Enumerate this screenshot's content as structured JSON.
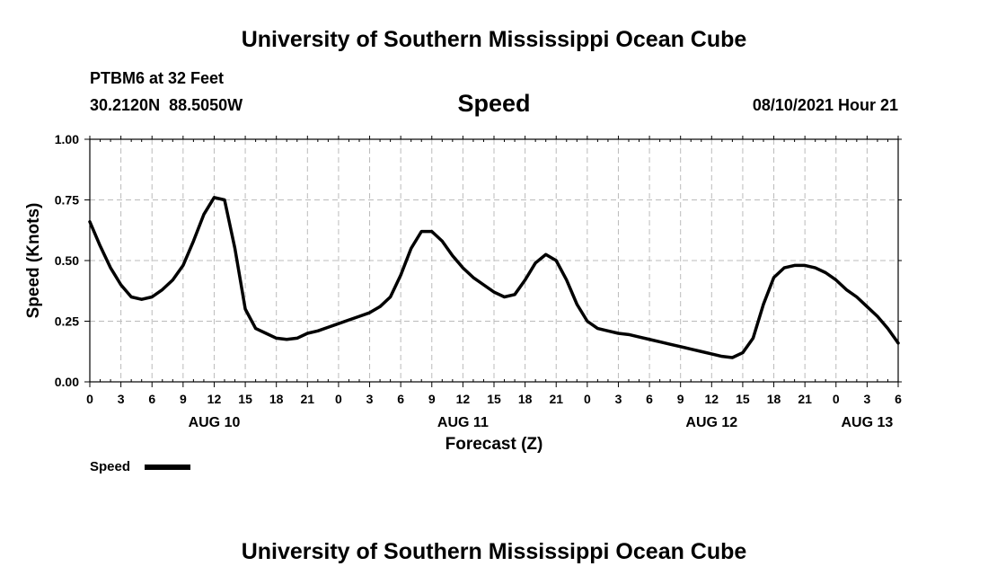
{
  "header": {
    "top_title": "University of Southern Mississippi Ocean Cube",
    "station": "PTBM6 at 32 Feet",
    "coords": "30.2120N  88.5050W",
    "datetime": "08/10/2021 Hour 21"
  },
  "footer": {
    "title": "University of Southern Mississippi Ocean Cube"
  },
  "chart_data": {
    "type": "line",
    "title": "Speed",
    "xlabel": "Forecast (Z)",
    "ylabel": "Speed (Knots)",
    "xlim": [
      0,
      78
    ],
    "ylim": [
      0,
      1.0
    ],
    "grid": true,
    "legend": "bottom-left",
    "y_ticks": [
      "0.00",
      "0.25",
      "0.50",
      "0.75",
      "1.00"
    ],
    "x_ticks": [
      "0",
      "3",
      "6",
      "9",
      "12",
      "15",
      "18",
      "21",
      "0",
      "3",
      "6",
      "9",
      "12",
      "15",
      "18",
      "21",
      "0",
      "3",
      "6",
      "9",
      "12",
      "15",
      "18",
      "21",
      "0",
      "3",
      "6"
    ],
    "day_labels": [
      {
        "label": "AUG 10",
        "at_hour": 12
      },
      {
        "label": "AUG 11",
        "at_hour": 36
      },
      {
        "label": "AUG 12",
        "at_hour": 60
      },
      {
        "label": "AUG 13",
        "at_hour": 75
      }
    ],
    "series": [
      {
        "name": "Speed",
        "color": "#000000",
        "x": [
          0,
          1,
          2,
          3,
          4,
          5,
          6,
          7,
          8,
          9,
          10,
          11,
          12,
          13,
          14,
          15,
          16,
          17,
          18,
          19,
          20,
          21,
          22,
          23,
          24,
          25,
          26,
          27,
          28,
          29,
          30,
          31,
          32,
          33,
          34,
          35,
          36,
          37,
          38,
          39,
          40,
          41,
          42,
          43,
          44,
          45,
          46,
          47,
          48,
          49,
          50,
          51,
          52,
          53,
          54,
          55,
          56,
          57,
          58,
          59,
          60,
          61,
          62,
          63,
          64,
          65,
          66,
          67,
          68,
          69,
          70,
          71,
          72,
          73,
          74,
          75,
          76,
          77,
          78
        ],
        "values": [
          0.66,
          0.56,
          0.47,
          0.4,
          0.35,
          0.34,
          0.35,
          0.38,
          0.42,
          0.48,
          0.58,
          0.69,
          0.76,
          0.75,
          0.55,
          0.3,
          0.22,
          0.2,
          0.18,
          0.175,
          0.18,
          0.2,
          0.21,
          0.225,
          0.24,
          0.255,
          0.27,
          0.285,
          0.31,
          0.35,
          0.44,
          0.55,
          0.62,
          0.62,
          0.58,
          0.52,
          0.47,
          0.43,
          0.4,
          0.37,
          0.35,
          0.36,
          0.42,
          0.49,
          0.525,
          0.5,
          0.42,
          0.32,
          0.25,
          0.22,
          0.21,
          0.2,
          0.195,
          0.185,
          0.175,
          0.165,
          0.155,
          0.145,
          0.135,
          0.125,
          0.115,
          0.105,
          0.1,
          0.12,
          0.18,
          0.32,
          0.43,
          0.47,
          0.48,
          0.48,
          0.47,
          0.45,
          0.42,
          0.38,
          0.35,
          0.31,
          0.27,
          0.22,
          0.16
        ]
      }
    ]
  }
}
